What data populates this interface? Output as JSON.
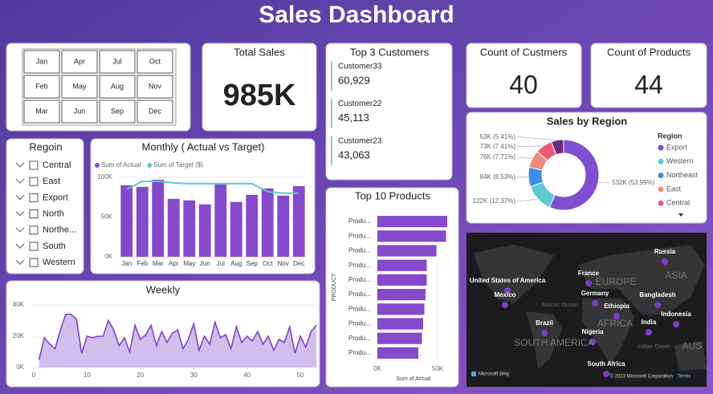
{
  "title": "Sales Dashboard",
  "month_slicer": {
    "months": [
      "Jan",
      "Apr",
      "Jul",
      "Oct",
      "Feb",
      "May",
      "Aug",
      "Nov",
      "Mar",
      "Jun",
      "Sep",
      "Dec"
    ]
  },
  "cards": [
    {
      "label": "Total Sales",
      "value": "985K"
    },
    {
      "label": "Count of Custmers",
      "value": "40"
    },
    {
      "label": "Count of Products",
      "value": "44"
    }
  ],
  "top_customers": {
    "title": "Top 3 Customers",
    "items": [
      {
        "name": "Customer33",
        "value": "60,929"
      },
      {
        "name": "Customer22",
        "value": "45,113"
      },
      {
        "name": "Customer23",
        "value": "43,063"
      }
    ]
  },
  "region_slicer": {
    "title": "Regoin",
    "items": [
      "Central",
      "East",
      "Export",
      "North",
      "Northe...",
      "South",
      "Western"
    ]
  },
  "map": {
    "labels": [
      "Russia",
      "ASIA",
      "EUROPE",
      "United States of America",
      "France",
      "Germany",
      "Mexico",
      "Atlantic Ocean",
      "Bangladesh",
      "Ethiopia",
      "India",
      "Indonesia",
      "Brazil",
      "AFRICA",
      "Nigeria",
      "SOUTH AMERICA",
      "Indian Ocean",
      "AUS",
      "South Africa"
    ],
    "attribution": "Microsoft Bing",
    "copyright": "© 2023 Microsoft Corporation",
    "terms": "Terms"
  },
  "chart_data": [
    {
      "type": "bar",
      "title": "Monthly ( Actual vs Target)",
      "categories": [
        "Jan",
        "Feb",
        "Mar",
        "Apr",
        "May",
        "Jun",
        "Jul",
        "Aug",
        "Sep",
        "Oct",
        "Nov",
        "Dec"
      ],
      "series": [
        {
          "name": "Sum of Actual",
          "color": "#8549cc",
          "values": [
            90000,
            88000,
            97000,
            73000,
            71000,
            66000,
            91000,
            69000,
            78000,
            86000,
            77000,
            89000
          ]
        },
        {
          "name": "Sum of Target ($)",
          "type": "line",
          "color": "#5ccbcb",
          "values": [
            85000,
            95000,
            95000,
            93000,
            92000,
            92000,
            92000,
            92000,
            92000,
            82000,
            80000,
            80000
          ]
        }
      ],
      "ylim": [
        0,
        100000
      ],
      "yticks": [
        {
          "value": 0,
          "label": "0K"
        },
        {
          "value": 50000,
          "label": "50K"
        },
        {
          "value": 100000,
          "label": "100K"
        }
      ],
      "legend": "top-left"
    },
    {
      "type": "area",
      "title": "Weekly",
      "color": "#9a6fd6",
      "x": [
        1,
        2,
        3,
        4,
        5,
        6,
        7,
        8,
        9,
        10,
        11,
        12,
        13,
        14,
        15,
        16,
        17,
        18,
        19,
        20,
        21,
        22,
        23,
        24,
        25,
        26,
        27,
        28,
        29,
        30,
        31,
        32,
        33,
        34,
        35,
        36,
        37,
        38,
        39,
        40,
        41,
        42,
        43,
        44,
        45,
        46,
        47,
        48,
        49,
        50,
        51,
        52,
        53
      ],
      "values": [
        5000,
        19000,
        15000,
        12000,
        24000,
        34000,
        34000,
        31000,
        9000,
        20000,
        19000,
        20000,
        20000,
        30000,
        24000,
        14000,
        19000,
        10000,
        27000,
        18000,
        21000,
        27000,
        14000,
        23000,
        16000,
        22000,
        24000,
        12000,
        18000,
        28000,
        11000,
        20000,
        15000,
        29000,
        19000,
        21000,
        12000,
        26000,
        16000,
        20000,
        17000,
        23000,
        15000,
        20000,
        11000,
        18000,
        16000,
        26000,
        9000,
        20000,
        13000,
        23000,
        27000
      ],
      "xlim": [
        0,
        53
      ],
      "xticks": [
        0,
        10,
        20,
        30,
        40,
        50
      ],
      "ylim": [
        0,
        40000
      ],
      "yticks": [
        {
          "value": 0,
          "label": "0K"
        },
        {
          "value": 20000,
          "label": "20K"
        },
        {
          "value": 40000,
          "label": "40K"
        }
      ]
    },
    {
      "type": "hbar",
      "title": "Top 10 Products",
      "color": "#8549cc",
      "categories": [
        "Produ...",
        "Produ...",
        "Produ...",
        "Produ...",
        "Produ...",
        "Produ...",
        "Produ...",
        "Produ...",
        "Produ...",
        "Produ..."
      ],
      "values": [
        58000,
        57000,
        49000,
        41000,
        41000,
        40000,
        39000,
        38000,
        37000,
        34000
      ],
      "xlim": [
        0,
        60000
      ],
      "xticks": [
        {
          "value": 0,
          "label": "0K"
        },
        {
          "value": 50000,
          "label": "50K"
        }
      ],
      "xlabel": "Sum of Actual",
      "ylabel": "PRODUCT"
    },
    {
      "type": "donut",
      "title": "Sales by Region",
      "legend_title": "Region",
      "categories": [
        "Export",
        "Western",
        "Northeast",
        "East",
        "Central",
        null
      ],
      "values": [
        532000,
        122000,
        84000,
        76000,
        73000,
        53000
      ],
      "value_labels": [
        "532K (53.99%)",
        "122K (12.37%)",
        "84K (8.53%)",
        "76K (7.71%)",
        "73K (7.41%)",
        "53K (5.41%)"
      ],
      "colors": [
        "#7e4fd0",
        "#5cc8d0",
        "#3d8bf0",
        "#f08a7a",
        "#ee5a75",
        "#6b2a7a"
      ]
    }
  ]
}
